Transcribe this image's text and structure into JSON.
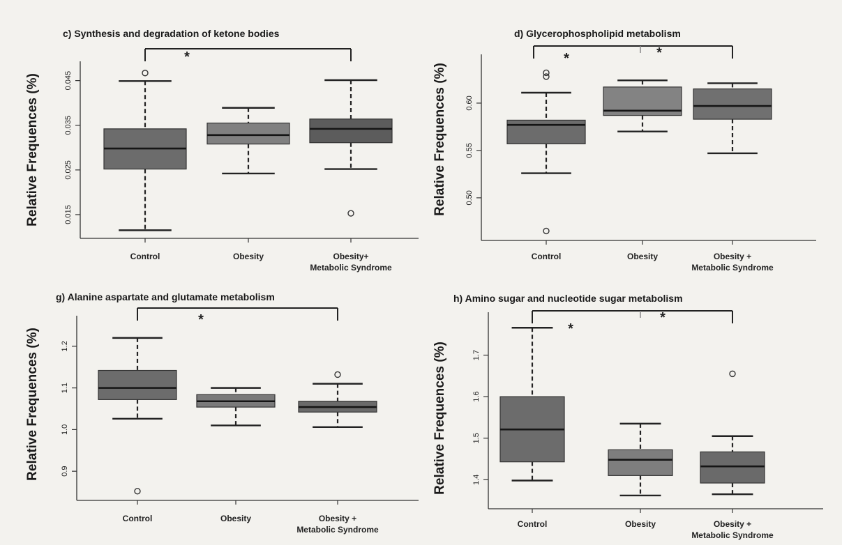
{
  "chart_data": [
    {
      "type": "box",
      "panel": "c)",
      "title": "Synthesis and degradation of ketone bodies",
      "ylabel": "Relative Frequences (%)",
      "yticks": [
        0.015,
        0.025,
        0.035,
        0.045
      ],
      "ytick_labels": [
        "0.015",
        "0.025",
        "0.035",
        "0.045"
      ],
      "ylim": [
        0.01,
        0.049
      ],
      "categories": [
        "Control",
        "Obesity",
        "Obesity+\nMetabolic Syndrome"
      ],
      "boxes": [
        {
          "whisker_low": 0.0115,
          "q1": 0.0252,
          "median": 0.0298,
          "q3": 0.0342,
          "whisker_high": 0.0449,
          "outliers": [
            0.0467
          ]
        },
        {
          "whisker_low": 0.0242,
          "q1": 0.0308,
          "median": 0.0328,
          "q3": 0.0355,
          "whisker_high": 0.0389,
          "outliers": []
        },
        {
          "whisker_low": 0.0252,
          "q1": 0.0311,
          "median": 0.0342,
          "q3": 0.0364,
          "whisker_high": 0.0451,
          "outliers": [
            0.0153
          ]
        }
      ],
      "box_colors": [
        "#6c6c6c",
        "#808080",
        "#5c5c5c"
      ],
      "significance": [
        {
          "from": 0,
          "to": 2,
          "label": "*"
        }
      ]
    },
    {
      "type": "box",
      "panel": "d)",
      "title": "Glycerophospholipid metabolism",
      "ylabel": "Relative Frequences (%)",
      "yticks": [
        0.5,
        0.55,
        0.6
      ],
      "ytick_labels": [
        "0.50",
        "0.55",
        "0.60"
      ],
      "ylim": [
        0.455,
        0.65
      ],
      "categories": [
        "Control",
        "Obesity",
        "Obesity +\nMetabolic Syndrome"
      ],
      "boxes": [
        {
          "whisker_low": 0.526,
          "q1": 0.557,
          "median": 0.577,
          "q3": 0.582,
          "whisker_high": 0.611,
          "outliers": [
            0.628,
            0.632,
            0.465
          ]
        },
        {
          "whisker_low": 0.57,
          "q1": 0.587,
          "median": 0.592,
          "q3": 0.617,
          "whisker_high": 0.624,
          "outliers": []
        },
        {
          "whisker_low": 0.547,
          "q1": 0.583,
          "median": 0.597,
          "q3": 0.615,
          "whisker_high": 0.621,
          "outliers": []
        }
      ],
      "box_colors": [
        "#6c6c6c",
        "#838383",
        "#707070"
      ],
      "significance": [
        {
          "from": 0,
          "to": 2,
          "label": "*"
        }
      ],
      "significance_stars": [
        "*",
        "*"
      ]
    },
    {
      "type": "box",
      "panel": "g)",
      "title": "Alanine aspartate and glutamate metabolism",
      "ylabel": "Relative Frequences (%)",
      "yticks": [
        0.9,
        1.0,
        1.1,
        1.2
      ],
      "ytick_labels": [
        "0.9",
        "1.0",
        "1.1",
        "1.2"
      ],
      "ylim": [
        0.83,
        1.27
      ],
      "categories": [
        "Control",
        "Obesity",
        "Obesity +\nMetabolic Syndrome"
      ],
      "boxes": [
        {
          "whisker_low": 1.026,
          "q1": 1.072,
          "median": 1.1,
          "q3": 1.142,
          "whisker_high": 1.22,
          "outliers": [
            0.852
          ]
        },
        {
          "whisker_low": 1.01,
          "q1": 1.054,
          "median": 1.068,
          "q3": 1.084,
          "whisker_high": 1.1,
          "outliers": []
        },
        {
          "whisker_low": 1.006,
          "q1": 1.042,
          "median": 1.054,
          "q3": 1.068,
          "whisker_high": 1.11,
          "outliers": [
            1.132
          ]
        }
      ],
      "box_colors": [
        "#6c6c6c",
        "#7a7a7a",
        "#6a6a6a"
      ],
      "significance": [
        {
          "from": 0,
          "to": 2,
          "label": "*"
        }
      ]
    },
    {
      "type": "box",
      "panel": "h)",
      "title": "Amino sugar and nucleotide sugar metabolism",
      "ylabel": "Relative Frequences (%)",
      "yticks": [
        1.4,
        1.5,
        1.6,
        1.7
      ],
      "ytick_labels": [
        "1.4",
        "1.5",
        "1.6",
        "1.7"
      ],
      "ylim": [
        1.33,
        1.8
      ],
      "categories": [
        "Control",
        "Obesity",
        "Obesity +\nMetabolic Syndrome"
      ],
      "boxes": [
        {
          "whisker_low": 1.398,
          "q1": 1.443,
          "median": 1.521,
          "q3": 1.6,
          "whisker_high": 1.766,
          "outliers": []
        },
        {
          "whisker_low": 1.362,
          "q1": 1.41,
          "median": 1.448,
          "q3": 1.472,
          "whisker_high": 1.535,
          "outliers": []
        },
        {
          "whisker_low": 1.365,
          "q1": 1.392,
          "median": 1.432,
          "q3": 1.467,
          "whisker_high": 1.505,
          "outliers": [
            1.655
          ]
        }
      ],
      "box_colors": [
        "#6c6c6c",
        "#7e7e7e",
        "#6a6a6a"
      ],
      "significance": [
        {
          "from": 0,
          "to": 2,
          "label": "*"
        }
      ],
      "significance_stars": [
        "*",
        "*"
      ]
    }
  ]
}
